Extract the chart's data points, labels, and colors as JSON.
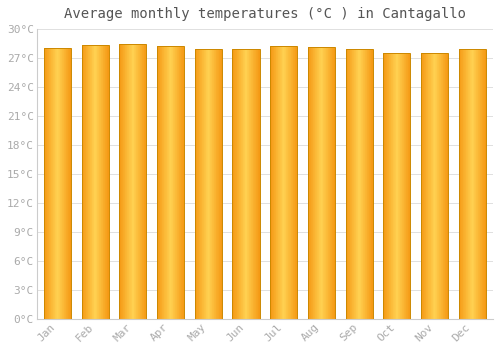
{
  "title": "Average monthly temperatures (°C ) in Cantagallo",
  "months": [
    "Jan",
    "Feb",
    "Mar",
    "Apr",
    "May",
    "Jun",
    "Jul",
    "Aug",
    "Sep",
    "Oct",
    "Nov",
    "Dec"
  ],
  "temperatures": [
    28.0,
    28.4,
    28.5,
    28.2,
    27.9,
    27.9,
    28.2,
    28.1,
    27.9,
    27.5,
    27.5,
    27.9
  ],
  "ylim": [
    0,
    30
  ],
  "yticks": [
    0,
    3,
    6,
    9,
    12,
    15,
    18,
    21,
    24,
    27,
    30
  ],
  "bar_edge_color": "#CC8800",
  "bar_color_center": "#FFD050",
  "bar_color_edge": "#F59500",
  "background_color": "#ffffff",
  "plot_bg_color": "#ffffff",
  "grid_color": "#e0e0e0",
  "title_fontsize": 10,
  "tick_fontsize": 8,
  "tick_label_color": "#aaaaaa",
  "title_color": "#555555",
  "bar_width": 0.72,
  "n_grad": 60
}
